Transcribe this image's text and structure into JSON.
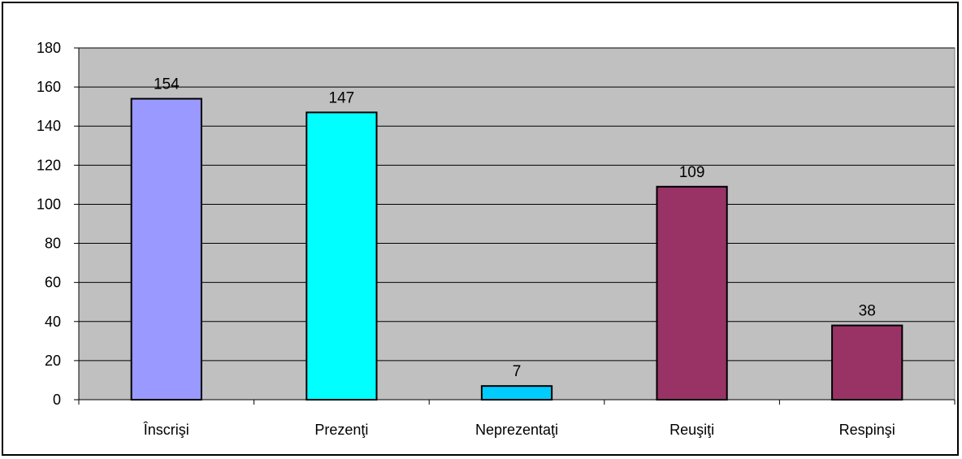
{
  "chart_data": {
    "type": "bar",
    "title": "",
    "xlabel": "",
    "ylabel": "",
    "categories": [
      "Înscrişi",
      "Prezenţi",
      "Neprezentaţi",
      "Reuşiţi",
      "Respinşi"
    ],
    "values": [
      154,
      147,
      7,
      109,
      38
    ],
    "bar_colors": [
      "#9999FF",
      "#00FFFF",
      "#00CCFF",
      "#993366",
      "#993366"
    ],
    "plot_background": "#C0C0C0",
    "ylim": [
      0,
      180
    ],
    "yticks": [
      0,
      20,
      40,
      60,
      80,
      100,
      120,
      140,
      160,
      180
    ],
    "grid": true,
    "data_labels": true
  }
}
